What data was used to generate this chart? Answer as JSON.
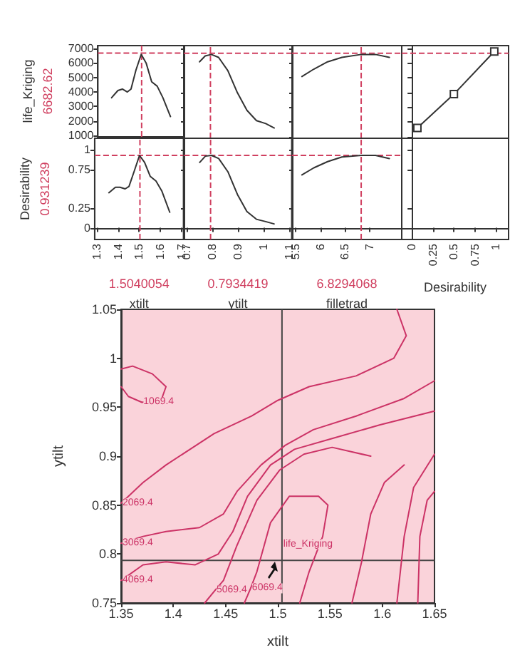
{
  "chart_data": [
    {
      "type": "line",
      "ylabel": "life_Kriging",
      "xlim": [
        1.29,
        1.71
      ],
      "xticks": [
        1.3,
        1.4,
        1.5,
        1.6,
        1.7
      ],
      "ylim": [
        900,
        7200
      ],
      "yticks": [
        1000,
        2000,
        3000,
        4000,
        5000,
        6000,
        7000
      ],
      "tick_labels": "y",
      "ref_lines": [
        {
          "axis": "x",
          "value": 1.5040054,
          "color": "#d04060",
          "line_style": "dashed"
        },
        {
          "axis": "y",
          "value": 6682.62,
          "label": "6682.62",
          "color": "#d04060",
          "line_style": "dashed"
        }
      ],
      "series": [
        {
          "color": "#333333",
          "x": [
            1.357,
            1.388,
            1.41,
            1.434,
            1.452,
            1.476,
            1.502,
            1.526,
            1.553,
            1.58,
            1.608,
            1.645
          ],
          "values": [
            3600,
            4100,
            4200,
            4000,
            4200,
            5500,
            6600,
            6000,
            4700,
            4400,
            3600,
            2300
          ]
        }
      ]
    },
    {
      "type": "line",
      "xlim": [
        0.69,
        1.11
      ],
      "xticks": [
        0.7,
        0.8,
        0.9,
        1,
        1.1
      ],
      "ylim": [
        900,
        7200
      ],
      "yticks": [
        1000,
        2000,
        3000,
        4000,
        5000,
        6000,
        7000
      ],
      "tick_labels": false,
      "ref_lines": [
        {
          "axis": "x",
          "value": 0.7934419,
          "color": "#d04060",
          "line_style": "dashed"
        },
        {
          "axis": "y",
          "value": 6682.62,
          "color": "#d04060",
          "line_style": "dashed"
        }
      ],
      "series": [
        {
          "color": "#333333",
          "x": [
            0.751,
            0.773,
            0.797,
            0.825,
            0.861,
            0.898,
            0.935,
            0.972,
            1.008,
            1.041
          ],
          "values": [
            6100,
            6500,
            6600,
            6400,
            5500,
            4000,
            2800,
            2100,
            1900,
            1600
          ]
        }
      ]
    },
    {
      "type": "line",
      "xlim": [
        5.43,
        7.65
      ],
      "xticks": [
        5.5,
        6,
        6.5,
        7
      ],
      "ylim": [
        900,
        7200
      ],
      "yticks": [
        1000,
        2000,
        3000,
        4000,
        5000,
        6000,
        7000
      ],
      "tick_labels": false,
      "ref_lines": [
        {
          "axis": "x",
          "value": 6.8294068,
          "color": "#d04060",
          "line_style": "dashed"
        },
        {
          "axis": "y",
          "value": 6682.62,
          "color": "#d04060",
          "line_style": "dashed"
        }
      ],
      "series": [
        {
          "color": "#333333",
          "x": [
            5.63,
            5.87,
            6.15,
            6.44,
            6.83,
            7.12,
            7.4
          ],
          "values": [
            5100,
            5600,
            6100,
            6400,
            6600,
            6600,
            6400
          ]
        }
      ]
    },
    {
      "type": "line",
      "xlim": [
        -0.12,
        1.15
      ],
      "xticks": [
        0,
        0.25,
        0.5,
        0.75,
        1
      ],
      "ylim": [
        900,
        7200
      ],
      "yticks": [
        1000,
        2000,
        3000,
        4000,
        5000,
        6000,
        7000
      ],
      "tick_labels": false,
      "marker": "square",
      "ref_lines": [
        {
          "axis": "y",
          "value": 6682.62,
          "color": "#d04060",
          "line_style": "dashed"
        }
      ],
      "series": [
        {
          "color": "#333333",
          "x": [
            0.066,
            0.5,
            0.98
          ],
          "values": [
            1600,
            3900,
            6800
          ]
        }
      ]
    },
    {
      "type": "line",
      "ylabel": "Desirability",
      "xlabel": "xtilt",
      "xlim": [
        1.29,
        1.71
      ],
      "xticks": [
        1.3,
        1.4,
        1.5,
        1.6,
        1.7
      ],
      "ylim": [
        -0.15,
        1.15
      ],
      "yticks": [
        0,
        0.25,
        0.75,
        1
      ],
      "ref_lines": [
        {
          "axis": "x",
          "value": 1.5040054,
          "label": "1.5040054",
          "color": "#d04060",
          "line_style": "dashed"
        },
        {
          "axis": "y",
          "value": 0.931239,
          "label": "0.931239",
          "color": "#d04060",
          "line_style": "dashed"
        }
      ],
      "series": [
        {
          "color": "#333333",
          "x": [
            1.357,
            1.388,
            1.41,
            1.434,
            1.452,
            1.476,
            1.502,
            1.526,
            1.553,
            1.58,
            1.608,
            1.645
          ],
          "values": [
            0.45,
            0.52,
            0.52,
            0.5,
            0.53,
            0.72,
            0.93,
            0.84,
            0.66,
            0.6,
            0.47,
            0.2
          ]
        }
      ]
    },
    {
      "type": "line",
      "xlabel": "ytilt",
      "xlim": [
        0.69,
        1.11
      ],
      "xticks": [
        0.7,
        0.8,
        0.9,
        1,
        1.1
      ],
      "ylim": [
        -0.15,
        1.15
      ],
      "yticks": [
        0,
        0.25,
        0.75,
        1
      ],
      "tick_labels": "x",
      "ref_lines": [
        {
          "axis": "x",
          "value": 0.7934419,
          "label": "0.7934419",
          "color": "#d04060",
          "line_style": "dashed"
        },
        {
          "axis": "y",
          "value": 0.931239,
          "color": "#d04060",
          "line_style": "dashed"
        }
      ],
      "series": [
        {
          "color": "#333333",
          "x": [
            0.751,
            0.773,
            0.797,
            0.825,
            0.861,
            0.898,
            0.935,
            0.972,
            1.008,
            1.041
          ],
          "values": [
            0.84,
            0.92,
            0.93,
            0.89,
            0.72,
            0.43,
            0.21,
            0.11,
            0.08,
            0.05
          ]
        }
      ]
    },
    {
      "type": "line",
      "xlabel": "filletrad",
      "xlim": [
        5.43,
        7.65
      ],
      "xticks": [
        5.5,
        6,
        6.5,
        7
      ],
      "ylim": [
        -0.15,
        1.15
      ],
      "yticks": [
        0,
        0.25,
        0.75,
        1
      ],
      "tick_labels": "x",
      "ref_lines": [
        {
          "axis": "x",
          "value": 6.8294068,
          "label": "6.8294068",
          "color": "#d04060",
          "line_style": "dashed"
        },
        {
          "axis": "y",
          "value": 0.931239,
          "color": "#d04060",
          "line_style": "dashed"
        }
      ],
      "series": [
        {
          "color": "#333333",
          "x": [
            5.63,
            5.87,
            6.15,
            6.44,
            6.83,
            7.12,
            7.4
          ],
          "values": [
            0.68,
            0.77,
            0.85,
            0.91,
            0.93,
            0.93,
            0.89
          ]
        }
      ]
    },
    {
      "type": "line",
      "xlabel": "Desirability",
      "xlim": [
        -0.12,
        1.15
      ],
      "xticks": [
        0,
        0.25,
        0.5,
        0.75,
        1
      ],
      "ylim": [
        -0.15,
        1.15
      ],
      "yticks": [
        0,
        0.25,
        0.75,
        1
      ],
      "tick_labels": "x"
    },
    {
      "type": "line",
      "xlabel": "xtilt",
      "ylabel": "ytilt",
      "xlim": [
        1.35,
        1.65
      ],
      "xticks": [
        1.35,
        1.4,
        1.45,
        1.5,
        1.55,
        1.6,
        1.65
      ],
      "ylim": [
        0.75,
        1.05
      ],
      "yticks": [
        0.75,
        0.8,
        0.85,
        0.9,
        0.95,
        1,
        1.05
      ],
      "ref_lines": [
        {
          "axis": "x",
          "value": 1.5040054,
          "color": "#444444"
        },
        {
          "axis": "y",
          "value": 0.7934419,
          "color": "#444444"
        }
      ],
      "annotations": [
        {
          "text": "1069.4",
          "x": 1.37,
          "y": 0.955
        },
        {
          "text": "2069.4",
          "x": 1.35,
          "y": 0.852
        },
        {
          "text": "3069.4",
          "x": 1.35,
          "y": 0.811
        },
        {
          "text": "4069.4",
          "x": 1.35,
          "y": 0.773
        },
        {
          "text": "5069.4",
          "x": 1.44,
          "y": 0.763
        },
        {
          "text": "6069.4",
          "x": 1.474,
          "y": 0.765
        },
        {
          "text": "life_Kriging",
          "x": 1.5040054,
          "y": 0.81
        }
      ],
      "series": [
        {
          "color": "#cc3366",
          "x": [
            1.35,
            1.357,
            1.37,
            1.389,
            1.393,
            1.38,
            1.361,
            1.35
          ],
          "values": [
            0.971,
            0.961,
            0.955,
            0.959,
            0.971,
            0.984,
            0.992,
            0.989
          ]
        },
        {
          "color": "#cc3366",
          "x": [
            1.35,
            1.371,
            1.393,
            1.439,
            1.475,
            1.5,
            1.53,
            1.575,
            1.611,
            1.623,
            1.614
          ],
          "values": [
            0.852,
            0.873,
            0.891,
            0.923,
            0.941,
            0.957,
            0.971,
            0.982,
            1.0,
            1.023,
            1.05
          ]
        },
        {
          "color": "#cc3366",
          "x": [
            1.35,
            1.371,
            1.393,
            1.425,
            1.448,
            1.461,
            1.484,
            1.507,
            1.534,
            1.575,
            1.621,
            1.65
          ],
          "values": [
            0.811,
            0.818,
            0.823,
            0.827,
            0.841,
            0.864,
            0.891,
            0.911,
            0.927,
            0.941,
            0.959,
            0.977
          ]
        },
        {
          "color": "#cc3366",
          "x": [
            1.35,
            1.371,
            1.393,
            1.421,
            1.443,
            1.457,
            1.471,
            1.493,
            1.516,
            1.552,
            1.598,
            1.65
          ],
          "values": [
            0.773,
            0.789,
            0.792,
            0.789,
            0.8,
            0.823,
            0.859,
            0.891,
            0.907,
            0.918,
            0.932,
            0.946
          ]
        },
        {
          "color": "#cc3366",
          "x": [
            1.43,
            1.44,
            1.448,
            1.461,
            1.48,
            1.502,
            1.525,
            1.552,
            1.589
          ],
          "values": [
            0.75,
            0.763,
            0.773,
            0.809,
            0.855,
            0.886,
            0.902,
            0.909,
            0.9
          ]
        },
        {
          "color": "#cc3366",
          "x": [
            1.468,
            1.474,
            1.48,
            1.493,
            1.511,
            1.539,
            1.548,
            1.543,
            1.53,
            1.521
          ],
          "values": [
            0.75,
            0.765,
            0.782,
            0.832,
            0.859,
            0.859,
            0.85,
            0.818,
            0.782,
            0.75
          ]
        },
        {
          "color": "#cc3366",
          "x": [
            1.571,
            1.58,
            1.589,
            1.602,
            1.621
          ],
          "values": [
            0.75,
            0.791,
            0.841,
            0.873,
            0.891
          ]
        },
        {
          "color": "#cc3366",
          "x": [
            1.614,
            1.621,
            1.63,
            1.65
          ],
          "values": [
            0.75,
            0.818,
            0.868,
            0.902
          ]
        },
        {
          "color": "#cc3366",
          "x": [
            1.634,
            1.636,
            1.643,
            1.65
          ],
          "values": [
            0.75,
            0.818,
            0.855,
            0.864
          ]
        }
      ]
    }
  ]
}
